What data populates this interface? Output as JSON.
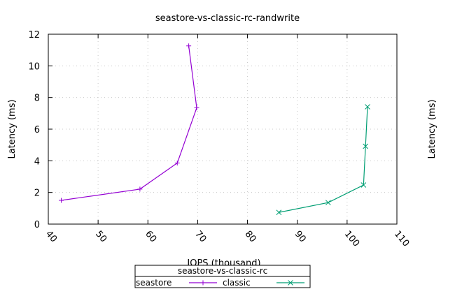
{
  "chart_data": {
    "type": "line",
    "title": "seastore-vs-classic-rc-randwrite",
    "xlabel": "IOPS (thousand)",
    "ylabel": "Latency (ms)",
    "y2label": "Latency (ms)",
    "xlim": [
      40,
      110
    ],
    "ylim": [
      0,
      12
    ],
    "xticks": [
      40,
      50,
      60,
      70,
      80,
      90,
      100,
      110
    ],
    "yticks": [
      0,
      2,
      4,
      6,
      8,
      10,
      12
    ],
    "grid": true,
    "legend": {
      "title": "seastore-vs-classic-rc",
      "placement": "bottom-center"
    },
    "series": [
      {
        "name": "seastore",
        "color": "#9400d3",
        "marker": "plus",
        "x": [
          42.6,
          58.4,
          65.9,
          69.8,
          68.2
        ],
        "y": [
          1.5,
          2.21,
          3.86,
          7.35,
          11.26
        ]
      },
      {
        "name": "classic",
        "color": "#009e73",
        "marker": "cross",
        "x": [
          86.3,
          96.2,
          103.3,
          103.7,
          104.1
        ],
        "y": [
          0.74,
          1.36,
          2.47,
          4.92,
          7.41
        ]
      }
    ]
  }
}
